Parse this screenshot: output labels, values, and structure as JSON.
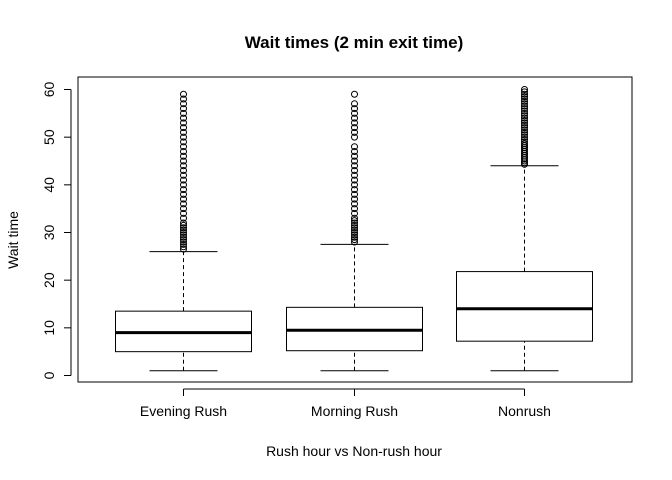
{
  "chart_data": {
    "type": "box",
    "title": "Wait times (2 min exit time)",
    "xlabel": "Rush hour vs Non-rush hour",
    "ylabel": "Wait time",
    "ylim": [
      0,
      60
    ],
    "yticks": [
      0,
      10,
      20,
      30,
      40,
      50,
      60
    ],
    "grid": false,
    "categories": [
      "Evening Rush",
      "Morning Rush",
      "Nonrush"
    ],
    "series": [
      {
        "min": 1,
        "q1": 5,
        "median": 9,
        "q3": 13.5,
        "whisker_high": 26,
        "outliers": [
          26.5,
          27,
          27.5,
          28,
          28.5,
          29,
          29.5,
          30,
          30.5,
          31,
          31.5,
          32,
          33,
          34,
          35,
          36,
          37,
          38,
          39,
          40,
          41,
          42,
          43,
          44,
          45,
          46,
          47,
          48,
          49,
          50,
          51,
          52,
          53,
          54,
          55,
          56,
          57,
          58,
          59
        ]
      },
      {
        "min": 1,
        "q1": 5.2,
        "median": 9.5,
        "q3": 14.3,
        "whisker_high": 27.5,
        "outliers": [
          28,
          28.5,
          29,
          29.5,
          30,
          30.5,
          31,
          31.5,
          32,
          32.5,
          33,
          34,
          35,
          36,
          37,
          38,
          39,
          40,
          41,
          42,
          43,
          44,
          45,
          46,
          47,
          48,
          50,
          51,
          52,
          53,
          54,
          55,
          56,
          57,
          59
        ]
      },
      {
        "min": 1,
        "q1": 7.2,
        "median": 14,
        "q3": 21.8,
        "whisker_high": 44,
        "outliers": [
          44.3,
          44.6,
          45,
          45.4,
          45.8,
          46.2,
          46.6,
          47,
          47.4,
          47.8,
          48.2,
          48.6,
          49,
          49.5,
          50,
          50.5,
          51,
          51.5,
          52,
          52.5,
          53,
          53.5,
          54,
          54.5,
          55,
          55.5,
          56,
          56.5,
          57,
          57.5,
          58,
          58.5,
          59,
          59.5,
          60
        ]
      }
    ]
  }
}
